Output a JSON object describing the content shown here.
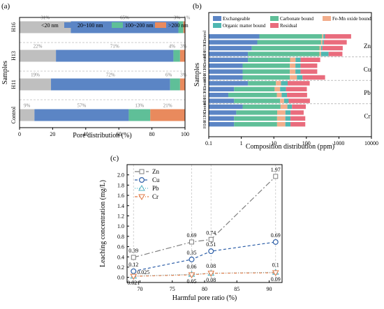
{
  "chart_data": [
    {
      "panel": "(a)",
      "type": "bar",
      "orientation": "horizontal",
      "stacked": true,
      "xlabel": "Pore distribution (%)",
      "ylabel": "Samples",
      "xlim": [
        0,
        100
      ],
      "xticks": [
        "0",
        "20",
        "40",
        "60",
        "80",
        "100"
      ],
      "categories": [
        "Control",
        "H11",
        "H13",
        "H16"
      ],
      "series": [
        {
          "name": "<20 nm",
          "color": "#bfbfbf",
          "values": [
            9,
            19,
            22,
            31
          ]
        },
        {
          "name": "20~100 nm",
          "color": "#5b85c5",
          "values": [
            57,
            72,
            71,
            65
          ]
        },
        {
          "name": "100~200 nm",
          "color": "#5fbf98",
          "values": [
            13,
            6,
            4,
            3
          ]
        },
        {
          "name": ">200 nm",
          "color": "#e98a5d",
          "values": [
            21,
            3,
            3,
            1
          ]
        }
      ],
      "labels": [
        [
          "9%",
          "57%",
          "13%",
          "21%"
        ],
        [
          "19%",
          "72%",
          "6%",
          "3%"
        ],
        [
          "22%",
          "71%",
          "4%",
          "3%"
        ],
        [
          "31%",
          "65%",
          "3%",
          "1%"
        ]
      ],
      "legend": [
        "<20 nm",
        "20~100 nm",
        "100~200 nm",
        ">200 nm"
      ]
    },
    {
      "panel": "(b)",
      "type": "bar",
      "orientation": "horizontal",
      "stacked": true,
      "xscale": "log",
      "xlabel": "Composition distribution (ppm)",
      "ylabel": "Samples",
      "xlim": [
        0.1,
        10000
      ],
      "xticks": [
        "0.1",
        "1",
        "10",
        "100",
        "1000",
        "10000"
      ],
      "groups": [
        "Zn",
        "Cu",
        "Pb",
        "Cr"
      ],
      "group_categories": [
        "Control",
        "H11",
        "H13",
        "H16"
      ],
      "series_names": [
        "Exchangeable",
        "Carbonate bound",
        "Fe-Mn oxide bound",
        "Organic matter bound",
        "Residual"
      ],
      "series_colors": [
        "#5b85c5",
        "#5fbf98",
        "#f2ad8b",
        "#4fb7b1",
        "#e96c7d"
      ],
      "values": {
        "Zn": [
          [
            3.5,
            300,
            30,
            40,
            2000
          ],
          [
            3,
            280,
            30,
            30,
            1400
          ],
          [
            2,
            250,
            30,
            30,
            1000
          ],
          [
            1.5,
            250,
            30,
            200,
            800
          ]
        ],
        "Cu": [
          [
            1.5,
            30,
            15,
            20,
            200
          ],
          [
            1,
            30,
            15,
            20,
            150
          ],
          [
            1,
            30,
            15,
            20,
            150
          ],
          [
            1,
            30,
            20,
            25,
            300
          ]
        ],
        "Pb": [
          [
            1.5,
            10,
            5,
            10,
            100
          ],
          [
            0.5,
            10,
            5,
            8,
            80
          ],
          [
            0.3,
            12,
            5,
            8,
            80
          ],
          [
            0.5,
            15,
            5,
            8,
            100
          ]
        ],
        "Cr": [
          [
            1,
            15,
            10,
            10,
            60
          ],
          [
            0.6,
            12,
            10,
            10,
            50
          ],
          [
            0.5,
            12,
            10,
            10,
            60
          ],
          [
            0.5,
            12,
            10,
            10,
            60
          ]
        ]
      }
    },
    {
      "panel": "(c)",
      "type": "line",
      "xlabel": "Harmful pore ratio (%)",
      "ylabel": "Leaching concentration (mg/L)",
      "xlim": [
        68,
        92
      ],
      "ylim": [
        -0.1,
        2.2
      ],
      "xticks": [
        "70",
        "75",
        "80",
        "85",
        "90"
      ],
      "yticks": [
        "0.0",
        "0.2",
        "0.4",
        "0.6",
        "0.8",
        "1.0",
        "1.2",
        "1.4",
        "1.6",
        "1.8",
        "2.0"
      ],
      "x": [
        69,
        78,
        81,
        91
      ],
      "series": [
        {
          "name": "Zn",
          "color": "#7f7f7f",
          "marker": "square",
          "values": [
            0.39,
            0.69,
            0.74,
            1.97
          ],
          "labels": [
            "0.39",
            "0.69",
            "0.74",
            "1.97"
          ]
        },
        {
          "name": "Cu",
          "color": "#2e5fa8",
          "marker": "circle",
          "values": [
            0.12,
            0.35,
            0.51,
            0.69
          ],
          "labels": [
            "0.12",
            "0.35",
            "0.51",
            "0.69"
          ]
        },
        {
          "name": "Pb",
          "color": "#53b3c3",
          "marker": "triangle",
          "values": [
            0.025,
            0.06,
            0.08,
            0.1
          ],
          "labels": [
            "0.025",
            "0.06",
            "0.08",
            "0.1"
          ]
        },
        {
          "name": "Cr",
          "color": "#e07a47",
          "marker": "triangle-down",
          "values": [
            0.021,
            0.05,
            0.08,
            0.09
          ],
          "labels": [
            "0.021",
            "0.05",
            "0.08",
            "0.09"
          ]
        }
      ]
    }
  ]
}
